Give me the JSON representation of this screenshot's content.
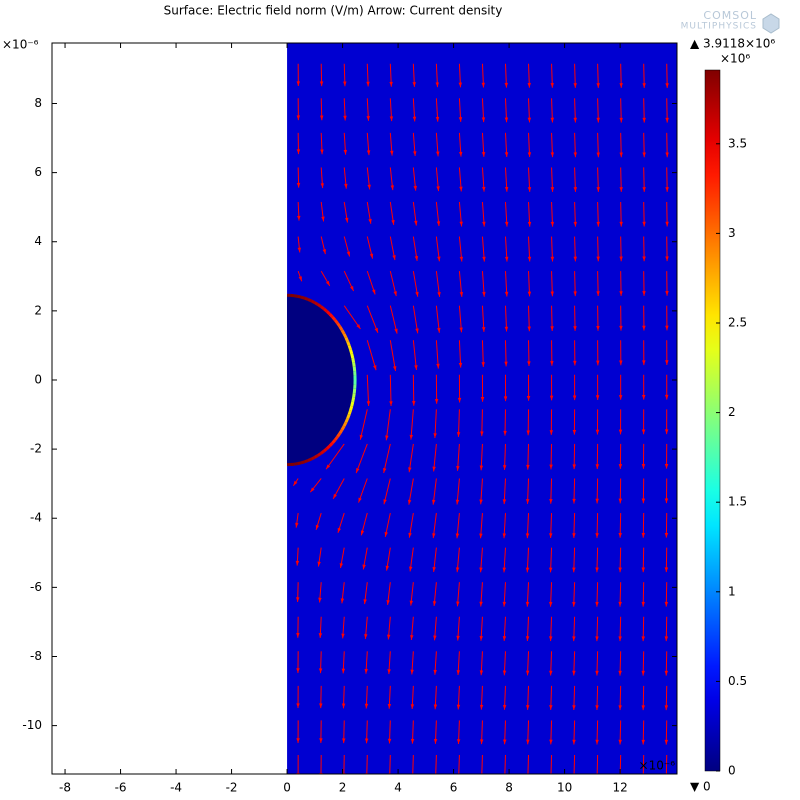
{
  "chart_data": {
    "type": "field",
    "title": "Surface: Electric field norm (V/m) Arrow: Current density",
    "logo": [
      "COMSOL",
      "MULTIPHYSICS"
    ],
    "x_exponent": "×10⁻⁶",
    "y_exponent": "×10⁻⁶",
    "xlim": [
      -8.47,
      14.05
    ],
    "ylim": [
      -11.4,
      9.75
    ],
    "xticks": [
      -8,
      -6,
      -4,
      -2,
      0,
      2,
      4,
      6,
      8,
      10,
      12
    ],
    "yticks": [
      -10,
      -8,
      -6,
      -4,
      -2,
      0,
      2,
      4,
      6,
      8
    ],
    "geometry": {
      "domain_x_min": 0,
      "sphere_radius": 2.45
    },
    "colorbar": {
      "colormap": "jet",
      "clim": [
        0,
        3.9118
      ],
      "exponent": "×10⁶",
      "ticks": [
        0,
        0.5,
        1,
        1.5,
        2,
        2.5,
        3,
        3.5
      ],
      "max_label": "▲ 3.9118×10⁶",
      "min_label": "▼ 0"
    },
    "arrow_color": "#ff0000"
  }
}
